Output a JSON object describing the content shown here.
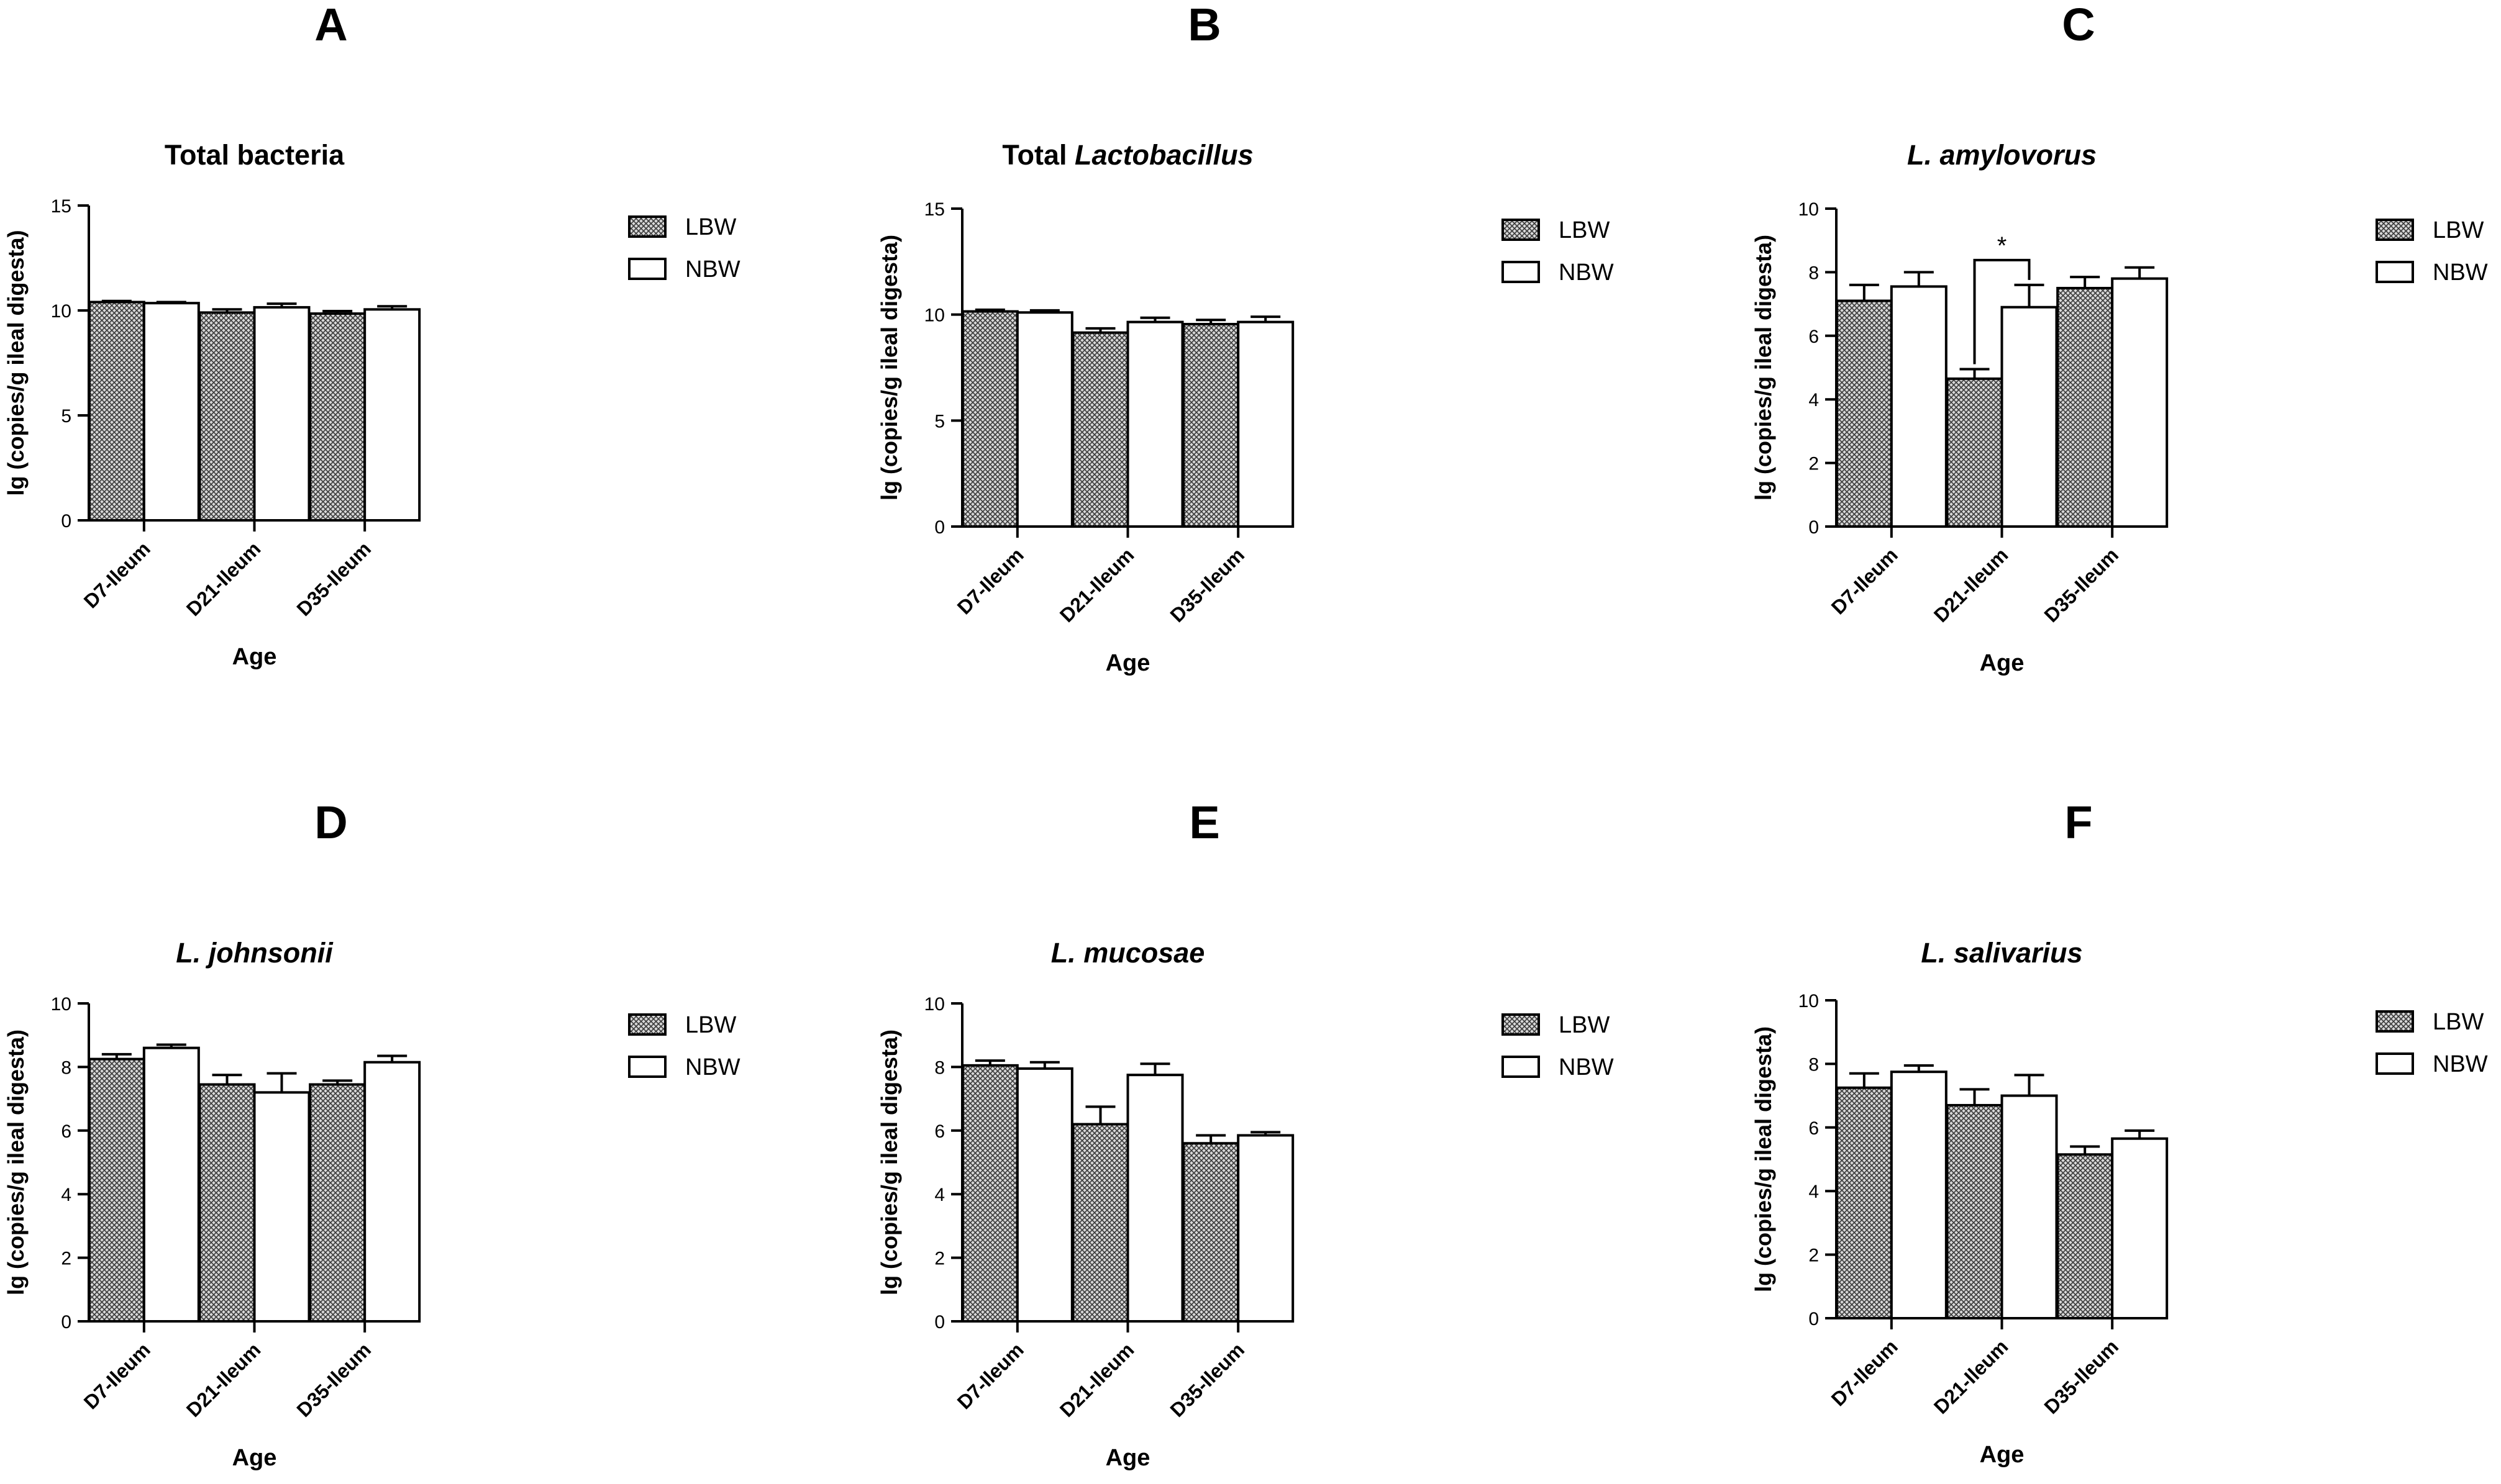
{
  "figure": {
    "panels": [
      {
        "letter": "A",
        "title_parts": [
          {
            "text": "Total bacteria",
            "italic": false
          }
        ]
      },
      {
        "letter": "B",
        "title_parts": [
          {
            "text": "Total ",
            "italic": false
          },
          {
            "text": "Lactobacillus",
            "italic": true
          }
        ]
      },
      {
        "letter": "C",
        "title_parts": [
          {
            "text": "L. amylovorus",
            "italic": true
          }
        ]
      },
      {
        "letter": "D",
        "title_parts": [
          {
            "text": "L. johnsonii",
            "italic": true
          }
        ]
      },
      {
        "letter": "E",
        "title_parts": [
          {
            "text": "L. mucosae",
            "italic": true
          }
        ]
      },
      {
        "letter": "F",
        "title_parts": [
          {
            "text": "L. salivarius",
            "italic": true
          }
        ]
      }
    ]
  },
  "chart_data": [
    {
      "type": "bar",
      "title": "Total bacteria",
      "xlabel": "Age",
      "ylabel": "lg (copies/g ileal digesta)",
      "categories": [
        "D7-Ileum",
        "D21-Ileum",
        "D35-Ileum"
      ],
      "ylim": [
        0,
        15
      ],
      "yticks": [
        0,
        5,
        10,
        15
      ],
      "legend": "right",
      "series": [
        {
          "name": "LBW",
          "pattern": "crosshatch-gray",
          "values": [
            10.4,
            9.9,
            9.85
          ],
          "errors": [
            0.05,
            0.15,
            0.12
          ]
        },
        {
          "name": "NBW",
          "pattern": "white",
          "values": [
            10.35,
            10.15,
            10.05
          ],
          "errors": [
            0.05,
            0.17,
            0.15
          ]
        }
      ],
      "annotations": []
    },
    {
      "type": "bar",
      "title": "Total Lactobacillus",
      "xlabel": "Age",
      "ylabel": "lg (copies/g ileal digesta)",
      "categories": [
        "D7-Ileum",
        "D21-Ileum",
        "D35-Ileum"
      ],
      "ylim": [
        0,
        15
      ],
      "yticks": [
        0,
        5,
        10,
        15
      ],
      "legend": "right",
      "series": [
        {
          "name": "LBW",
          "pattern": "crosshatch-gray",
          "values": [
            10.15,
            9.15,
            9.55
          ],
          "errors": [
            0.08,
            0.2,
            0.2
          ]
        },
        {
          "name": "NBW",
          "pattern": "white",
          "values": [
            10.1,
            9.65,
            9.65
          ],
          "errors": [
            0.1,
            0.2,
            0.25
          ]
        }
      ],
      "annotations": []
    },
    {
      "type": "bar",
      "title": "L. amylovorus",
      "xlabel": "Age",
      "ylabel": "lg (copies/g ileal digesta)",
      "categories": [
        "D7-Ileum",
        "D21-Ileum",
        "D35-Ileum"
      ],
      "ylim": [
        0,
        10
      ],
      "yticks": [
        0,
        2,
        4,
        6,
        8,
        10
      ],
      "legend": "right",
      "series": [
        {
          "name": "LBW",
          "pattern": "crosshatch-gray",
          "values": [
            7.1,
            4.65,
            7.5
          ],
          "errors": [
            0.5,
            0.3,
            0.35
          ]
        },
        {
          "name": "NBW",
          "pattern": "white",
          "values": [
            7.55,
            6.9,
            7.8
          ],
          "errors": [
            0.45,
            0.7,
            0.35
          ]
        }
      ],
      "annotations": [
        {
          "text": "*",
          "category": "D21-Ileum"
        }
      ]
    },
    {
      "type": "bar",
      "title": "L. johnsonii",
      "xlabel": "Age",
      "ylabel": "lg (copies/g ileal digesta)",
      "categories": [
        "D7-Ileum",
        "D21-Ileum",
        "D35-Ileum"
      ],
      "ylim": [
        0,
        10
      ],
      "yticks": [
        0,
        2,
        4,
        6,
        8,
        10
      ],
      "legend": "right",
      "series": [
        {
          "name": "LBW",
          "pattern": "crosshatch-gray",
          "values": [
            8.25,
            7.45,
            7.45
          ],
          "errors": [
            0.15,
            0.3,
            0.12
          ]
        },
        {
          "name": "NBW",
          "pattern": "white",
          "values": [
            8.6,
            7.2,
            8.15
          ],
          "errors": [
            0.1,
            0.6,
            0.2
          ]
        }
      ],
      "annotations": []
    },
    {
      "type": "bar",
      "title": "L. mucosae",
      "xlabel": "Age",
      "ylabel": "lg (copies/g ileal digesta)",
      "categories": [
        "D7-Ileum",
        "D21-Ileum",
        "D35-Ileum"
      ],
      "ylim": [
        0,
        10
      ],
      "yticks": [
        0,
        2,
        4,
        6,
        8,
        10
      ],
      "legend": "right",
      "series": [
        {
          "name": "LBW",
          "pattern": "crosshatch-gray",
          "values": [
            8.05,
            6.2,
            5.6
          ],
          "errors": [
            0.15,
            0.55,
            0.25
          ]
        },
        {
          "name": "NBW",
          "pattern": "white",
          "values": [
            7.95,
            7.75,
            5.85
          ],
          "errors": [
            0.2,
            0.35,
            0.1
          ]
        }
      ],
      "annotations": []
    },
    {
      "type": "bar",
      "title": "L. salivarius",
      "xlabel": "Age",
      "ylabel": "lg (copies/g ileal digesta)",
      "categories": [
        "D7-Ileum",
        "D21-Ileum",
        "D35-Ileum"
      ],
      "ylim": [
        0,
        10
      ],
      "yticks": [
        0,
        2,
        4,
        6,
        8,
        10
      ],
      "legend": "right",
      "series": [
        {
          "name": "LBW",
          "pattern": "crosshatch-gray",
          "values": [
            7.25,
            6.7,
            5.15
          ],
          "errors": [
            0.45,
            0.5,
            0.25
          ]
        },
        {
          "name": "NBW",
          "pattern": "white",
          "values": [
            7.75,
            7.0,
            5.65
          ],
          "errors": [
            0.2,
            0.65,
            0.25
          ]
        }
      ],
      "annotations": []
    }
  ]
}
